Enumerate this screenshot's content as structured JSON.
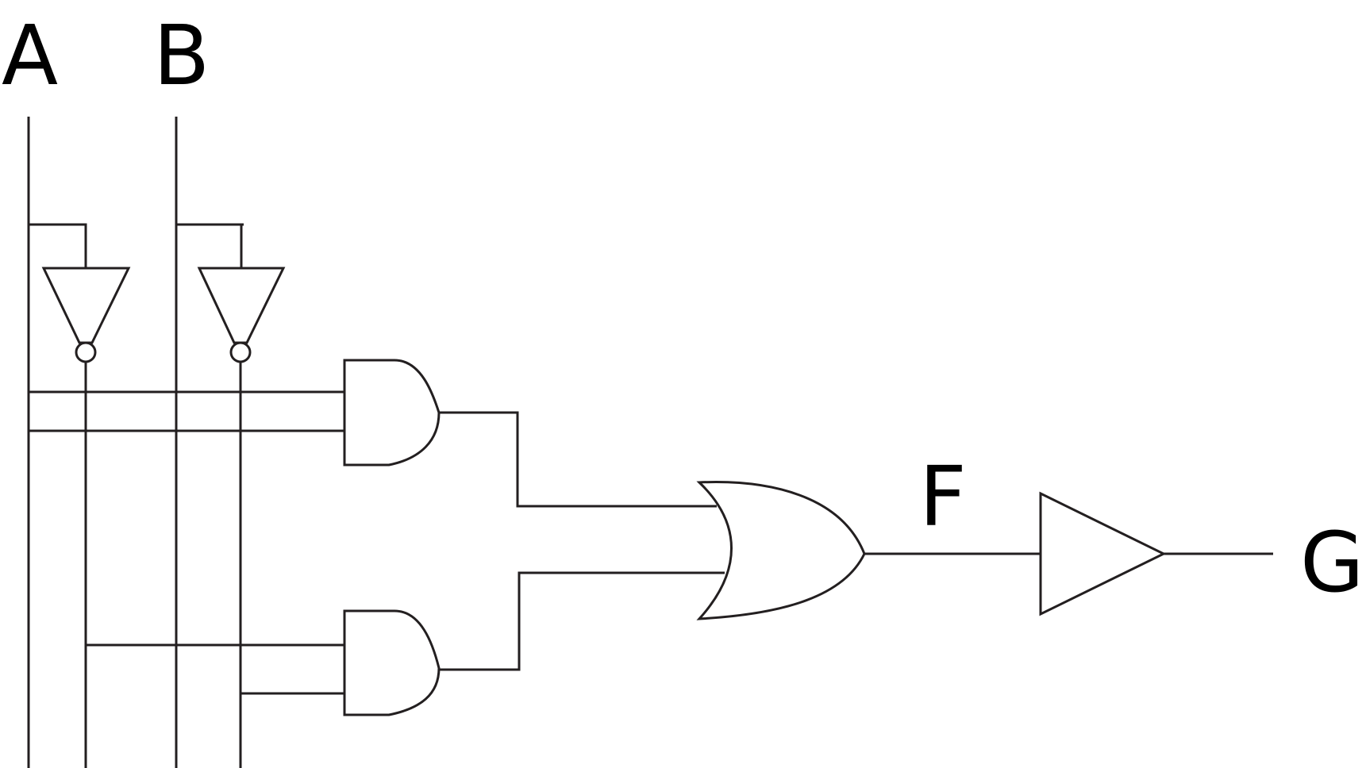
{
  "labels": {
    "input_a": "A",
    "input_b": "B",
    "output_f": "F",
    "output_g": "G"
  },
  "colors": {
    "line": "#231f20",
    "text": "#000000",
    "background": "#ffffff"
  }
}
